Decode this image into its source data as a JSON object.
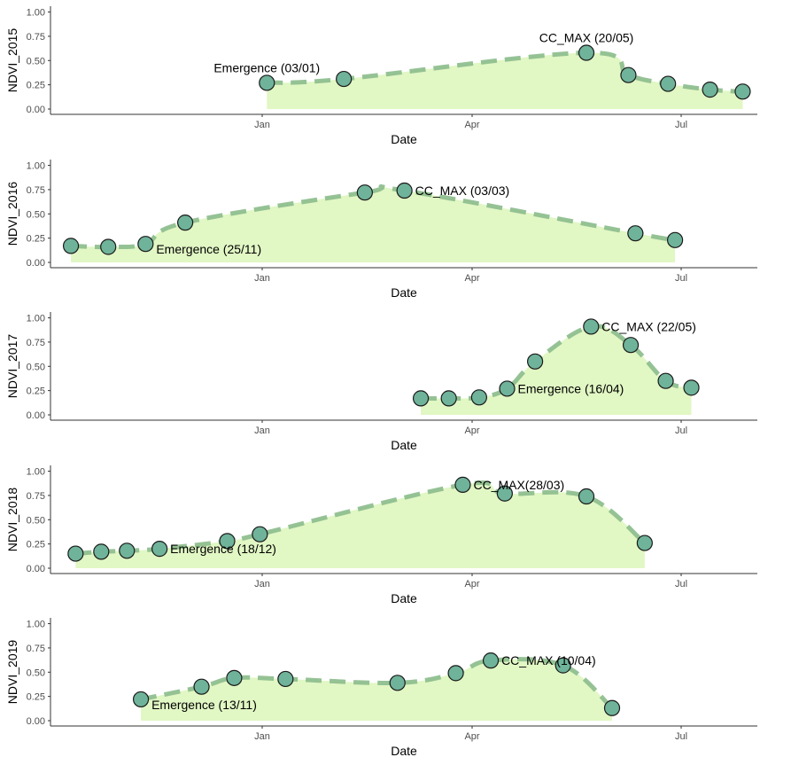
{
  "chart_data": [
    {
      "type": "area",
      "ylabel": "NDVI_2015",
      "xlabel": "Date",
      "ylim": [
        0,
        1
      ],
      "yticks": [
        "0.00",
        "0.25",
        "0.50",
        "0.75",
        "1.00"
      ],
      "xticks": [
        "Jan",
        "Apr",
        "Jul"
      ],
      "x": [
        "03/01",
        "05/02",
        "20/05",
        "07/06",
        "24/06",
        "12/07",
        "26/07"
      ],
      "values": [
        0.27,
        0.31,
        0.58,
        0.35,
        0.26,
        0.2,
        0.18
      ],
      "annotations": [
        {
          "text": "Emergence (03/01)",
          "point": 0,
          "pos": "above"
        },
        {
          "text": "CC_MAX (20/05)",
          "point": 2,
          "pos": "above"
        }
      ]
    },
    {
      "type": "area",
      "ylabel": "NDVI_2016",
      "xlabel": "Date",
      "ylim": [
        0,
        1
      ],
      "yticks": [
        "0.00",
        "0.25",
        "0.50",
        "0.75",
        "1.00"
      ],
      "xticks": [
        "Jan",
        "Apr",
        "Jul"
      ],
      "x": [
        "11/10",
        "27/10",
        "12/11",
        "29/11",
        "14/02",
        "03/03",
        "10/06",
        "27/06"
      ],
      "values": [
        0.17,
        0.16,
        0.19,
        0.41,
        0.72,
        0.74,
        0.3,
        0.23
      ],
      "annotations": [
        {
          "text": "Emergence (25/11)",
          "point": 2,
          "pos": "right-below"
        },
        {
          "text": "CC_MAX (03/03)",
          "point": 5,
          "pos": "right"
        }
      ]
    },
    {
      "type": "area",
      "ylabel": "NDVI_2017",
      "xlabel": "Date",
      "ylim": [
        0,
        1
      ],
      "yticks": [
        "0.00",
        "0.25",
        "0.50",
        "0.75",
        "1.00"
      ],
      "xticks": [
        "Jan",
        "Apr",
        "Jul"
      ],
      "x": [
        "10/03",
        "22/03",
        "04/04",
        "16/04",
        "28/04",
        "22/05",
        "08/06",
        "23/06",
        "04/07"
      ],
      "values": [
        0.17,
        0.17,
        0.18,
        0.27,
        0.55,
        0.91,
        0.72,
        0.35,
        0.28
      ],
      "annotations": [
        {
          "text": "Emergence (16/04)",
          "point": 3,
          "pos": "right"
        },
        {
          "text": "CC_MAX (22/05)",
          "point": 5,
          "pos": "right"
        }
      ]
    },
    {
      "type": "area",
      "ylabel": "NDVI_2018",
      "xlabel": "Date",
      "ylim": [
        0,
        1
      ],
      "yticks": [
        "0.00",
        "0.25",
        "0.50",
        "0.75",
        "1.00"
      ],
      "xticks": [
        "Jan",
        "Apr",
        "Jul"
      ],
      "x": [
        "13/10",
        "24/10",
        "04/11",
        "18/11",
        "17/12",
        "31/12",
        "28/03",
        "15/04",
        "20/05",
        "14/06"
      ],
      "values": [
        0.15,
        0.17,
        0.18,
        0.2,
        0.28,
        0.35,
        0.86,
        0.77,
        0.74,
        0.26
      ],
      "annotations": [
        {
          "text": "Emergence (18/12)",
          "point": 3,
          "pos": "right"
        },
        {
          "text": "CC_MAX(28/03)",
          "point": 6,
          "pos": "right"
        }
      ]
    },
    {
      "type": "area",
      "ylabel": "NDVI_2019",
      "xlabel": "Date",
      "ylim": [
        0,
        1
      ],
      "yticks": [
        "0.00",
        "0.25",
        "0.50",
        "0.75",
        "1.00"
      ],
      "xticks": [
        "Jan",
        "Apr",
        "Jul"
      ],
      "x": [
        "10/11",
        "06/12",
        "20/12",
        "11/01",
        "28/02",
        "25/03",
        "09/04",
        "10/05",
        "31/05"
      ],
      "values": [
        0.22,
        0.35,
        0.44,
        0.43,
        0.39,
        0.49,
        0.62,
        0.57,
        0.13
      ],
      "annotations": [
        {
          "text": "Emergence (13/11)",
          "point": 0,
          "pos": "right-below"
        },
        {
          "text": "CC_MAX (10/04)",
          "point": 6,
          "pos": "right"
        }
      ]
    }
  ],
  "colors": {
    "area_fill": "#e1f7c4",
    "line": "#8fbf8f",
    "marker_fill": "#6fb39a",
    "marker_stroke": "#1a1a1a",
    "axis": "#333333"
  }
}
